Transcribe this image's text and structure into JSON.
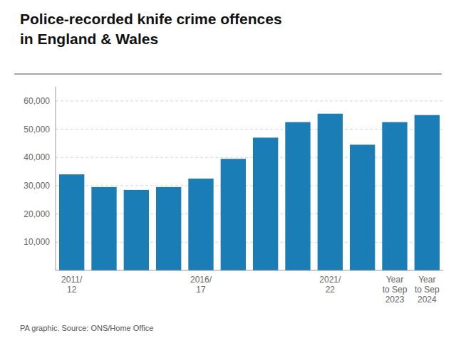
{
  "chart_data": {
    "type": "bar",
    "title": "Police-recorded knife crime offences\nin England & Wales",
    "source": "PA graphic. Source: ONS/Home Office",
    "categories": [
      "2011/\n12",
      null,
      null,
      null,
      "2016/\n17",
      null,
      null,
      null,
      "2021/\n22",
      null,
      "Year\nto Sep\n2023",
      "Year\nto Sep\n2024"
    ],
    "values": [
      34000,
      29500,
      28500,
      29500,
      32500,
      39500,
      47000,
      52500,
      55500,
      44500,
      52500,
      55000
    ],
    "color": "#1a7db5",
    "ylim": [
      0,
      65000
    ],
    "yticks": [
      {
        "value": 10000,
        "label": "10,000"
      },
      {
        "value": 20000,
        "label": "20,000"
      },
      {
        "value": 30000,
        "label": "30,000"
      },
      {
        "value": 40000,
        "label": "40,000"
      },
      {
        "value": 50000,
        "label": "50,000"
      },
      {
        "value": 60000,
        "label": "60,000"
      }
    ],
    "grid": true
  }
}
